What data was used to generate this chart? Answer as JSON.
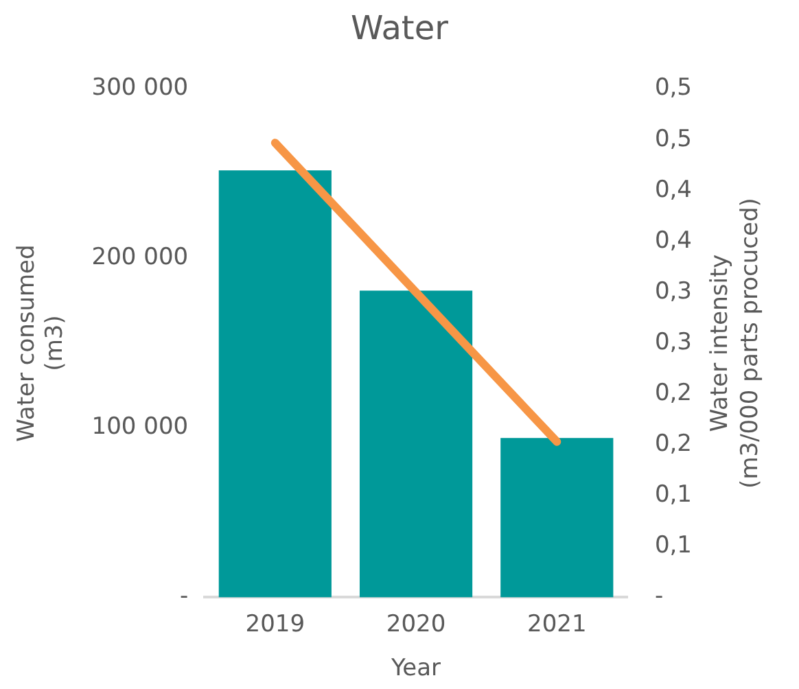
{
  "chart_data": {
    "type": "bar",
    "title": "Water",
    "xlabel": "Year",
    "ylabel": "Water consumed (m3)",
    "y2label": "Water intensity (m3/000 parts procuced)",
    "categories": [
      "2019",
      "2020",
      "2021"
    ],
    "series": [
      {
        "color": "#009999",
        "values": [
          252000,
          181000,
          94000
        ]
      },
      {
        "type": "line",
        "axis": "y2",
        "color": "#f79646",
        "values": [
          0.447,
          0.3,
          0.153
        ]
      }
    ],
    "ylim": [
      0,
      300000
    ],
    "yticks": [
      {
        "value": 0,
        "label": "-"
      },
      {
        "value": 100000,
        "label": "100 000"
      },
      {
        "value": 200000,
        "label": "200 000"
      },
      {
        "value": 300000,
        "label": "300 000"
      }
    ],
    "y2lim": [
      0,
      0.5
    ],
    "y2ticks": [
      {
        "value": 0,
        "label": "-"
      },
      {
        "value": 0.05,
        "label": "0,1"
      },
      {
        "value": 0.1,
        "label": "0,1"
      },
      {
        "value": 0.15,
        "label": "0,2"
      },
      {
        "value": 0.2,
        "label": "0,2"
      },
      {
        "value": 0.25,
        "label": "0,3"
      },
      {
        "value": 0.3,
        "label": "0,3"
      },
      {
        "value": 0.35,
        "label": "0,4"
      },
      {
        "value": 0.4,
        "label": "0,4"
      },
      {
        "value": 0.45,
        "label": "0,5"
      },
      {
        "value": 0.5,
        "label": "0,5"
      }
    ],
    "grid": false,
    "legend": false,
    "marker": "none",
    "line_style": "solid"
  }
}
